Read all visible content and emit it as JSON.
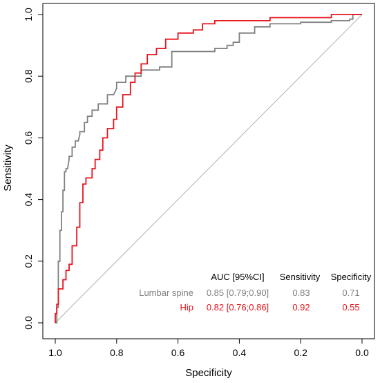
{
  "chart_data": {
    "type": "line",
    "title": "",
    "xlabel": "Specificity",
    "ylabel": "Sensitivity",
    "xlim": [
      1.0,
      0.0
    ],
    "ylim": [
      0.0,
      1.0
    ],
    "x_reversed": true,
    "x_ticks": [
      "1.0",
      "0.8",
      "0.6",
      "0.4",
      "0.2",
      "0.0"
    ],
    "y_ticks": [
      "0.0",
      "0.2",
      "0.4",
      "0.6",
      "0.8",
      "1.0"
    ],
    "x_tick_values": [
      1.0,
      0.8,
      0.6,
      0.4,
      0.2,
      0.0
    ],
    "y_tick_values": [
      0.0,
      0.2,
      0.4,
      0.6,
      0.8,
      1.0
    ],
    "grid": false,
    "diagonal": {
      "from": [
        1.0,
        0.0
      ],
      "to": [
        0.0,
        1.0
      ],
      "color": "#b0b0b0"
    },
    "series": [
      {
        "name": "Lumbar spine",
        "color": "#808080",
        "specificity": [
          1.0,
          0.995,
          0.995,
          0.99,
          0.99,
          0.985,
          0.985,
          0.98,
          0.98,
          0.975,
          0.975,
          0.97,
          0.97,
          0.965,
          0.965,
          0.96,
          0.955,
          0.955,
          0.945,
          0.945,
          0.935,
          0.935,
          0.925,
          0.92,
          0.92,
          0.905,
          0.905,
          0.895,
          0.895,
          0.88,
          0.88,
          0.86,
          0.86,
          0.83,
          0.83,
          0.81,
          0.8,
          0.8,
          0.77,
          0.77,
          0.72,
          0.72,
          0.66,
          0.66,
          0.62,
          0.62,
          0.48,
          0.48,
          0.44,
          0.44,
          0.42,
          0.42,
          0.4,
          0.4,
          0.35,
          0.35,
          0.3,
          0.3,
          0.2,
          0.2,
          0.1,
          0.1,
          0.04,
          0.04,
          0.03,
          0.03,
          0.0
        ],
        "sensitivity": [
          0.0,
          0.0,
          0.05,
          0.05,
          0.2,
          0.2,
          0.3,
          0.3,
          0.36,
          0.36,
          0.43,
          0.43,
          0.49,
          0.49,
          0.5,
          0.5,
          0.53,
          0.54,
          0.54,
          0.57,
          0.57,
          0.59,
          0.59,
          0.61,
          0.62,
          0.62,
          0.65,
          0.65,
          0.67,
          0.67,
          0.69,
          0.69,
          0.71,
          0.71,
          0.74,
          0.74,
          0.76,
          0.78,
          0.78,
          0.8,
          0.8,
          0.82,
          0.82,
          0.83,
          0.83,
          0.88,
          0.88,
          0.89,
          0.89,
          0.9,
          0.9,
          0.91,
          0.91,
          0.94,
          0.94,
          0.96,
          0.96,
          0.97,
          0.97,
          0.975,
          0.975,
          0.98,
          0.98,
          0.985,
          0.985,
          1.0,
          1.0
        ]
      },
      {
        "name": "Hip",
        "color": "#e8141c",
        "specificity": [
          1.0,
          1.0,
          0.995,
          0.995,
          0.99,
          0.99,
          0.975,
          0.975,
          0.965,
          0.965,
          0.955,
          0.955,
          0.945,
          0.945,
          0.93,
          0.93,
          0.92,
          0.92,
          0.91,
          0.91,
          0.9,
          0.9,
          0.88,
          0.88,
          0.87,
          0.87,
          0.855,
          0.855,
          0.845,
          0.845,
          0.83,
          0.83,
          0.81,
          0.81,
          0.8,
          0.8,
          0.78,
          0.78,
          0.755,
          0.755,
          0.74,
          0.74,
          0.72,
          0.72,
          0.7,
          0.7,
          0.67,
          0.67,
          0.64,
          0.64,
          0.6,
          0.6,
          0.55,
          0.55,
          0.52,
          0.52,
          0.48,
          0.48,
          0.3,
          0.3,
          0.1,
          0.1,
          0.0
        ],
        "sensitivity": [
          0.0,
          0.03,
          0.03,
          0.06,
          0.06,
          0.11,
          0.11,
          0.14,
          0.14,
          0.17,
          0.17,
          0.19,
          0.19,
          0.25,
          0.25,
          0.31,
          0.31,
          0.39,
          0.39,
          0.45,
          0.45,
          0.47,
          0.47,
          0.5,
          0.5,
          0.53,
          0.53,
          0.56,
          0.56,
          0.6,
          0.6,
          0.63,
          0.63,
          0.66,
          0.66,
          0.7,
          0.7,
          0.74,
          0.74,
          0.78,
          0.78,
          0.81,
          0.81,
          0.84,
          0.84,
          0.87,
          0.87,
          0.89,
          0.89,
          0.92,
          0.92,
          0.94,
          0.94,
          0.95,
          0.95,
          0.97,
          0.97,
          0.98,
          0.98,
          0.99,
          0.99,
          1.0,
          1.0
        ]
      }
    ],
    "table": {
      "headers": [
        "AUC [95%CI]",
        "Sensitivity",
        "Specificity"
      ],
      "rows": [
        {
          "label": "Lumbar spine",
          "auc": "0.85 [0.79;0.90]",
          "sensitivity": "0.83",
          "specificity": "0.71",
          "color": "#808080"
        },
        {
          "label": "Hip",
          "auc": "0.82 [0.76;0.86]",
          "sensitivity": "0.92",
          "specificity": "0.55",
          "color": "#e8141c"
        }
      ]
    }
  }
}
